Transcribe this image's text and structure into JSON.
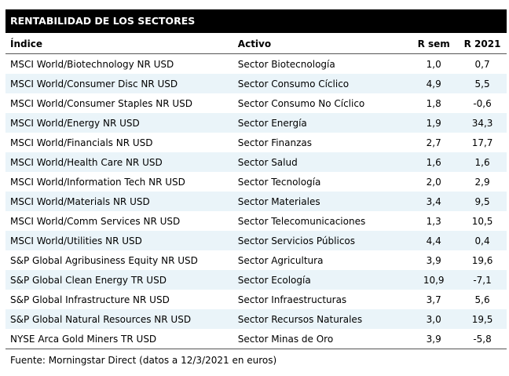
{
  "title": "RENTABILIDAD DE LOS SECTORES",
  "table": {
    "header": [
      "Índice",
      "Activo",
      "R sem",
      "R 2021"
    ],
    "rows": [
      [
        "MSCI World/Biotechnology NR USD",
        "Sector Biotecnología",
        "1,0",
        "0,7"
      ],
      [
        "MSCI World/Consumer Disc NR USD",
        "Sector Consumo Cíclico",
        "4,9",
        "5,5"
      ],
      [
        "MSCI World/Consumer Staples NR USD",
        "Sector Consumo No Cíclico",
        "1,8",
        "-0,6"
      ],
      [
        "MSCI World/Energy NR USD",
        "Sector Energía",
        "1,9",
        "34,3"
      ],
      [
        "MSCI World/Financials NR USD",
        "Sector Finanzas",
        "2,7",
        "17,7"
      ],
      [
        "MSCI World/Health Care NR USD",
        "Sector Salud",
        "1,6",
        "1,6"
      ],
      [
        "MSCI World/Information Tech NR USD",
        "Sector Tecnología",
        "2,0",
        "2,9"
      ],
      [
        "MSCI World/Materials NR USD",
        "Sector Materiales",
        "3,4",
        "9,5"
      ],
      [
        "MSCI World/Comm Services NR USD",
        "Sector Telecomunicaciones",
        "1,3",
        "10,5"
      ],
      [
        "MSCI World/Utilities NR USD",
        "Sector Servicios Públicos",
        "4,4",
        "0,4"
      ],
      [
        "S&P Global Agribusiness Equity NR USD",
        "Sector Agricultura",
        "3,9",
        "19,6"
      ],
      [
        "S&P Global Clean Energy TR USD",
        "Sector Ecología",
        "10,9",
        "-7,1"
      ],
      [
        "S&P Global Infrastructure NR USD",
        "Sector Infraestructuras",
        "3,7",
        "5,6"
      ],
      [
        "S&P Global Natural Resources NR USD",
        "Sector Recursos Naturales",
        "3,0",
        "19,5"
      ],
      [
        "NYSE Arca Gold Miners TR USD",
        "Sector Minas de Oro",
        "3,9",
        "-5,8"
      ]
    ]
  },
  "footer": "Fuente: Morningstar Direct (datos a 12/3/2021 en euros)"
}
